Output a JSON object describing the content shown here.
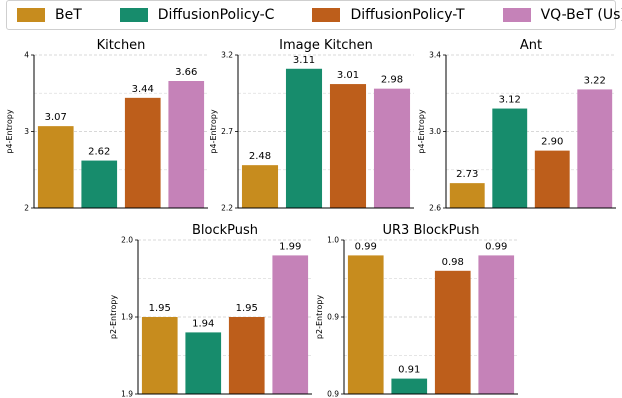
{
  "legend": {
    "items": [
      {
        "label": "BeT",
        "color": "#c78c1e"
      },
      {
        "label": "DiffusionPolicy-C",
        "color": "#178c6c"
      },
      {
        "label": "DiffusionPolicy-T",
        "color": "#bd5e1b"
      },
      {
        "label": "VQ-BeT (Us)",
        "color": "#c582b8"
      }
    ]
  },
  "chart_data": [
    {
      "type": "bar",
      "title": "Kitchen",
      "ylabel": "p4-Entropy",
      "categories": [
        "BeT",
        "DiffusionPolicy-C",
        "DiffusionPolicy-T",
        "VQ-BeT (Us)"
      ],
      "values": [
        3.07,
        2.62,
        3.44,
        3.66
      ],
      "value_labels": [
        "3.07",
        "2.62",
        "3.44",
        "3.66"
      ],
      "ylim": [
        2,
        4
      ],
      "yticks": [
        "2",
        "3",
        "4"
      ],
      "grid": true
    },
    {
      "type": "bar",
      "title": "Image Kitchen",
      "ylabel": "p4-Entropy",
      "categories": [
        "BeT",
        "DiffusionPolicy-C",
        "DiffusionPolicy-T",
        "VQ-BeT (Us)"
      ],
      "values": [
        2.48,
        3.11,
        3.01,
        2.98
      ],
      "value_labels": [
        "2.48",
        "3.11",
        "3.01",
        "2.98"
      ],
      "ylim": [
        2.2,
        3.2
      ],
      "yticks": [
        "2.2",
        "2.7",
        "3.2"
      ],
      "grid": true
    },
    {
      "type": "bar",
      "title": "Ant",
      "ylabel": "p4-Entropy",
      "categories": [
        "BeT",
        "DiffusionPolicy-C",
        "DiffusionPolicy-T",
        "VQ-BeT (Us)"
      ],
      "values": [
        2.73,
        3.12,
        2.9,
        3.22
      ],
      "value_labels": [
        "2.73",
        "3.12",
        "2.90",
        "3.22"
      ],
      "ylim": [
        2.6,
        3.4
      ],
      "yticks": [
        "2.6",
        "3.0",
        "3.4"
      ],
      "grid": true
    },
    {
      "type": "bar",
      "title": "BlockPush",
      "ylabel": "p2-Entropy",
      "categories": [
        "BeT",
        "DiffusionPolicy-C",
        "DiffusionPolicy-T",
        "VQ-BeT (Us)"
      ],
      "values": [
        1.95,
        1.94,
        1.95,
        1.99
      ],
      "value_labels": [
        "1.95",
        "1.94",
        "1.95",
        "1.99"
      ],
      "ylim": [
        1.9,
        2.0
      ],
      "yticks": [
        "1.9",
        "1.9",
        "2.0"
      ],
      "grid": true
    },
    {
      "type": "bar",
      "title": "UR3 BlockPush",
      "ylabel": "p2-Entropy",
      "categories": [
        "BeT",
        "DiffusionPolicy-C",
        "DiffusionPolicy-T",
        "VQ-BeT (Us)"
      ],
      "values": [
        0.99,
        0.91,
        0.98,
        0.99
      ],
      "value_labels": [
        "0.99",
        "0.91",
        "0.98",
        "0.99"
      ],
      "ylim": [
        0.9,
        1.0
      ],
      "yticks": [
        "0.9",
        "0.9",
        "1.0"
      ],
      "grid": true
    }
  ]
}
